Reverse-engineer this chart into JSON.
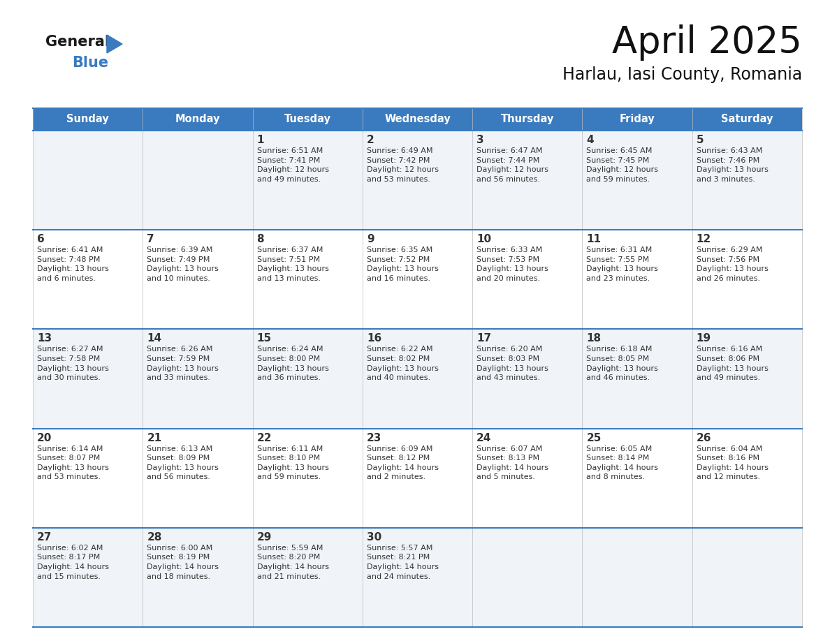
{
  "title": "April 2025",
  "subtitle": "Harlau, Iasi County, Romania",
  "header_color": "#3a7bbf",
  "header_text_color": "#ffffff",
  "bg_color": "#ffffff",
  "cell_bg_light": "#f0f4f8",
  "cell_bg_white": "#ffffff",
  "days_of_week": [
    "Sunday",
    "Monday",
    "Tuesday",
    "Wednesday",
    "Thursday",
    "Friday",
    "Saturday"
  ],
  "weeks": [
    [
      {
        "day": "",
        "info": ""
      },
      {
        "day": "",
        "info": ""
      },
      {
        "day": "1",
        "info": "Sunrise: 6:51 AM\nSunset: 7:41 PM\nDaylight: 12 hours\nand 49 minutes."
      },
      {
        "day": "2",
        "info": "Sunrise: 6:49 AM\nSunset: 7:42 PM\nDaylight: 12 hours\nand 53 minutes."
      },
      {
        "day": "3",
        "info": "Sunrise: 6:47 AM\nSunset: 7:44 PM\nDaylight: 12 hours\nand 56 minutes."
      },
      {
        "day": "4",
        "info": "Sunrise: 6:45 AM\nSunset: 7:45 PM\nDaylight: 12 hours\nand 59 minutes."
      },
      {
        "day": "5",
        "info": "Sunrise: 6:43 AM\nSunset: 7:46 PM\nDaylight: 13 hours\nand 3 minutes."
      }
    ],
    [
      {
        "day": "6",
        "info": "Sunrise: 6:41 AM\nSunset: 7:48 PM\nDaylight: 13 hours\nand 6 minutes."
      },
      {
        "day": "7",
        "info": "Sunrise: 6:39 AM\nSunset: 7:49 PM\nDaylight: 13 hours\nand 10 minutes."
      },
      {
        "day": "8",
        "info": "Sunrise: 6:37 AM\nSunset: 7:51 PM\nDaylight: 13 hours\nand 13 minutes."
      },
      {
        "day": "9",
        "info": "Sunrise: 6:35 AM\nSunset: 7:52 PM\nDaylight: 13 hours\nand 16 minutes."
      },
      {
        "day": "10",
        "info": "Sunrise: 6:33 AM\nSunset: 7:53 PM\nDaylight: 13 hours\nand 20 minutes."
      },
      {
        "day": "11",
        "info": "Sunrise: 6:31 AM\nSunset: 7:55 PM\nDaylight: 13 hours\nand 23 minutes."
      },
      {
        "day": "12",
        "info": "Sunrise: 6:29 AM\nSunset: 7:56 PM\nDaylight: 13 hours\nand 26 minutes."
      }
    ],
    [
      {
        "day": "13",
        "info": "Sunrise: 6:27 AM\nSunset: 7:58 PM\nDaylight: 13 hours\nand 30 minutes."
      },
      {
        "day": "14",
        "info": "Sunrise: 6:26 AM\nSunset: 7:59 PM\nDaylight: 13 hours\nand 33 minutes."
      },
      {
        "day": "15",
        "info": "Sunrise: 6:24 AM\nSunset: 8:00 PM\nDaylight: 13 hours\nand 36 minutes."
      },
      {
        "day": "16",
        "info": "Sunrise: 6:22 AM\nSunset: 8:02 PM\nDaylight: 13 hours\nand 40 minutes."
      },
      {
        "day": "17",
        "info": "Sunrise: 6:20 AM\nSunset: 8:03 PM\nDaylight: 13 hours\nand 43 minutes."
      },
      {
        "day": "18",
        "info": "Sunrise: 6:18 AM\nSunset: 8:05 PM\nDaylight: 13 hours\nand 46 minutes."
      },
      {
        "day": "19",
        "info": "Sunrise: 6:16 AM\nSunset: 8:06 PM\nDaylight: 13 hours\nand 49 minutes."
      }
    ],
    [
      {
        "day": "20",
        "info": "Sunrise: 6:14 AM\nSunset: 8:07 PM\nDaylight: 13 hours\nand 53 minutes."
      },
      {
        "day": "21",
        "info": "Sunrise: 6:13 AM\nSunset: 8:09 PM\nDaylight: 13 hours\nand 56 minutes."
      },
      {
        "day": "22",
        "info": "Sunrise: 6:11 AM\nSunset: 8:10 PM\nDaylight: 13 hours\nand 59 minutes."
      },
      {
        "day": "23",
        "info": "Sunrise: 6:09 AM\nSunset: 8:12 PM\nDaylight: 14 hours\nand 2 minutes."
      },
      {
        "day": "24",
        "info": "Sunrise: 6:07 AM\nSunset: 8:13 PM\nDaylight: 14 hours\nand 5 minutes."
      },
      {
        "day": "25",
        "info": "Sunrise: 6:05 AM\nSunset: 8:14 PM\nDaylight: 14 hours\nand 8 minutes."
      },
      {
        "day": "26",
        "info": "Sunrise: 6:04 AM\nSunset: 8:16 PM\nDaylight: 14 hours\nand 12 minutes."
      }
    ],
    [
      {
        "day": "27",
        "info": "Sunrise: 6:02 AM\nSunset: 8:17 PM\nDaylight: 14 hours\nand 15 minutes."
      },
      {
        "day": "28",
        "info": "Sunrise: 6:00 AM\nSunset: 8:19 PM\nDaylight: 14 hours\nand 18 minutes."
      },
      {
        "day": "29",
        "info": "Sunrise: 5:59 AM\nSunset: 8:20 PM\nDaylight: 14 hours\nand 21 minutes."
      },
      {
        "day": "30",
        "info": "Sunrise: 5:57 AM\nSunset: 8:21 PM\nDaylight: 14 hours\nand 24 minutes."
      },
      {
        "day": "",
        "info": ""
      },
      {
        "day": "",
        "info": ""
      },
      {
        "day": "",
        "info": ""
      }
    ]
  ],
  "logo_general_color": "#1a1a1a",
  "logo_blue_color": "#3a7bbf",
  "logo_triangle_color": "#3a7bbf",
  "line_color": "#3a7bbf",
  "day_num_color": "#333333",
  "info_text_color": "#333333"
}
